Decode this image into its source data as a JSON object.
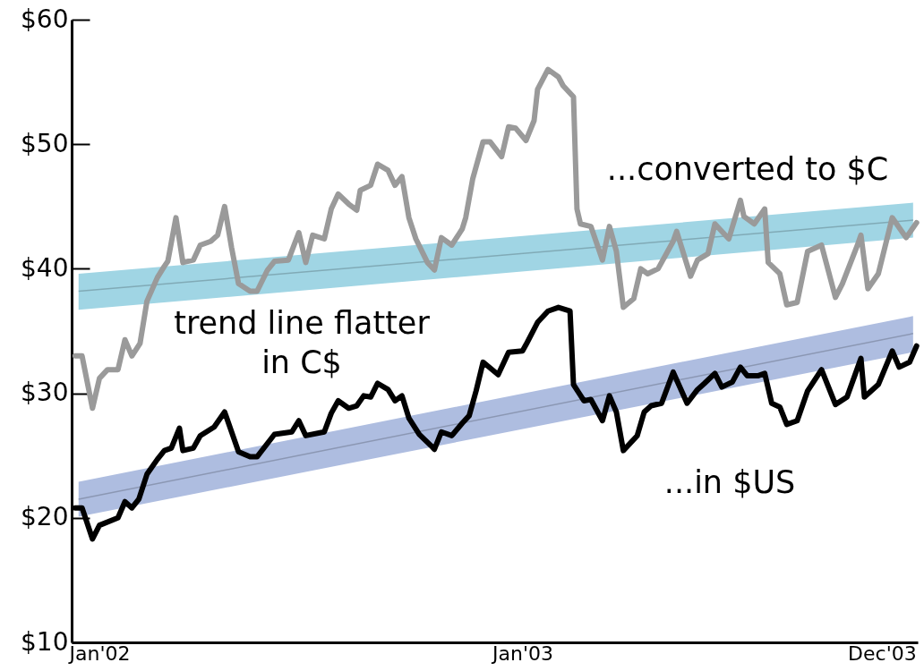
{
  "chart_data": {
    "type": "line",
    "xlim": [
      "2002-01-01",
      "2004-01-01"
    ],
    "ylim": [
      10,
      60
    ],
    "xticks": [
      {
        "value": "2002-01-25",
        "label": "Jan'02"
      },
      {
        "value": "2003-01-25",
        "label": "Jan'03"
      },
      {
        "value": "2003-12-01",
        "label": "Dec'03"
      }
    ],
    "yticks": [
      {
        "value": 10,
        "label": "$10"
      },
      {
        "value": 20,
        "label": "$20"
      },
      {
        "value": 30,
        "label": "$30"
      },
      {
        "value": 40,
        "label": "$40"
      },
      {
        "value": 50,
        "label": "$50"
      },
      {
        "value": 60,
        "label": "$60"
      }
    ],
    "annotations": [
      "trend line flatter\nin C$"
    ],
    "series": [
      {
        "color": "#80aab6",
        "x": [
          "2002-01-07",
          "2003-12-28"
        ],
        "values": [
          38.2,
          43.9
        ],
        "lower": [
          36.7,
          42.5
        ],
        "upper": [
          39.6,
          45.3
        ]
      },
      {
        "color": "#8b97b3",
        "x": [
          "2002-01-07",
          "2003-12-28"
        ],
        "values": [
          21.5,
          34.8
        ],
        "lower": [
          20.1,
          33.3
        ],
        "upper": [
          22.9,
          36.2
        ]
      },
      {
        "name": "...converted to $C",
        "color": "#9a9a9a",
        "x": [
          "2002-01-04",
          "2002-01-10",
          "2002-01-19",
          "2002-01-25",
          "2002-02-01",
          "2002-02-10",
          "2002-02-16",
          "2002-02-22",
          "2002-03-01",
          "2002-03-07",
          "2002-03-16",
          "2002-03-22",
          "2002-03-25",
          "2002-04-01",
          "2002-04-07",
          "2002-04-16",
          "2002-04-22",
          "2002-05-01",
          "2002-05-07",
          "2002-05-13",
          "2002-05-19",
          "2002-05-25",
          "2002-06-04",
          "2002-06-10",
          "2002-06-19",
          "2002-06-25",
          "2002-07-07",
          "2002-07-16",
          "2002-07-22",
          "2002-07-28",
          "2002-08-07",
          "2002-08-13",
          "2002-08-19",
          "2002-08-28",
          "2002-09-04",
          "2002-09-07",
          "2002-09-16",
          "2002-09-22",
          "2002-10-01",
          "2002-10-07",
          "2002-10-13",
          "2002-10-19",
          "2002-10-25",
          "2002-11-04",
          "2002-11-10",
          "2002-11-16",
          "2002-11-25",
          "2002-12-04",
          "2002-12-07",
          "2002-12-13",
          "2002-12-22",
          "2002-12-28",
          "2003-01-07",
          "2003-01-13",
          "2003-01-19",
          "2003-01-28",
          "2003-02-04",
          "2003-02-07",
          "2003-02-16",
          "2003-02-25",
          "2003-03-01",
          "2003-03-10",
          "2003-03-13",
          "2003-03-16",
          "2003-03-25",
          "2003-04-04",
          "2003-04-10",
          "2003-04-16",
          "2003-04-22",
          "2003-05-01",
          "2003-05-07",
          "2003-05-13",
          "2003-05-22",
          "2003-06-04",
          "2003-06-07",
          "2003-06-19",
          "2003-06-25",
          "2003-07-04",
          "2003-07-10",
          "2003-07-22",
          "2003-08-01",
          "2003-08-04",
          "2003-08-13",
          "2003-08-22",
          "2003-08-25",
          "2003-09-04",
          "2003-09-10",
          "2003-09-19",
          "2003-09-28",
          "2003-10-10",
          "2003-10-22",
          "2003-10-28",
          "2003-11-10",
          "2003-11-13",
          "2003-11-19",
          "2003-11-28",
          "2003-12-10",
          "2003-12-22",
          "2003-12-31"
        ],
        "values": [
          33.0,
          33.0,
          28.8,
          31.2,
          31.9,
          31.9,
          34.3,
          33.0,
          34.0,
          37.4,
          39.3,
          40.2,
          40.6,
          44.1,
          40.5,
          40.7,
          41.9,
          42.2,
          42.7,
          45.0,
          41.7,
          38.8,
          38.2,
          38.2,
          39.9,
          40.6,
          40.7,
          42.9,
          40.5,
          42.7,
          42.4,
          44.8,
          46.0,
          45.2,
          44.7,
          46.3,
          46.7,
          48.4,
          47.9,
          46.7,
          47.4,
          44.1,
          42.4,
          40.5,
          39.9,
          42.5,
          41.9,
          43.2,
          44.1,
          47.2,
          50.2,
          50.2,
          49.0,
          51.4,
          51.3,
          50.3,
          51.9,
          54.4,
          56.0,
          55.4,
          54.7,
          53.8,
          44.8,
          43.6,
          43.4,
          40.7,
          43.4,
          41.4,
          36.9,
          37.6,
          40.0,
          39.6,
          40.0,
          42.2,
          43.0,
          39.4,
          40.7,
          41.2,
          43.6,
          42.4,
          45.5,
          44.2,
          43.6,
          44.8,
          40.5,
          39.6,
          37.1,
          37.3,
          41.4,
          41.9,
          37.7,
          38.8,
          41.9,
          42.7,
          38.4,
          39.6,
          44.1,
          42.5,
          43.7
        ]
      },
      {
        "name": "...in $US",
        "color": "#000000",
        "x": [
          "2002-01-04",
          "2002-01-10",
          "2002-01-19",
          "2002-01-25",
          "2002-02-10",
          "2002-02-16",
          "2002-02-22",
          "2002-02-28",
          "2002-03-07",
          "2002-03-16",
          "2002-03-22",
          "2002-03-28",
          "2002-04-04",
          "2002-04-07",
          "2002-04-16",
          "2002-04-22",
          "2002-05-04",
          "2002-05-13",
          "2002-05-25",
          "2002-06-04",
          "2002-06-10",
          "2002-06-25",
          "2002-07-10",
          "2002-07-16",
          "2002-07-22",
          "2002-08-07",
          "2002-08-13",
          "2002-08-19",
          "2002-08-28",
          "2002-09-04",
          "2002-09-10",
          "2002-09-16",
          "2002-09-22",
          "2002-10-01",
          "2002-10-07",
          "2002-10-13",
          "2002-10-19",
          "2002-10-28",
          "2002-11-07",
          "2002-11-10",
          "2002-11-16",
          "2002-11-25",
          "2002-12-04",
          "2002-12-10",
          "2002-12-16",
          "2002-12-22",
          "2003-01-04",
          "2003-01-13",
          "2003-01-25",
          "2003-01-28",
          "2003-02-07",
          "2003-02-16",
          "2003-02-25",
          "2003-03-07",
          "2003-03-10",
          "2003-03-19",
          "2003-03-25",
          "2003-04-04",
          "2003-04-10",
          "2003-04-16",
          "2003-04-22",
          "2003-05-04",
          "2003-05-10",
          "2003-05-16",
          "2003-05-25",
          "2003-06-04",
          "2003-06-16",
          "2003-06-25",
          "2003-07-01",
          "2003-07-10",
          "2003-07-16",
          "2003-07-25",
          "2003-08-01",
          "2003-08-07",
          "2003-08-16",
          "2003-08-22",
          "2003-08-28",
          "2003-09-04",
          "2003-09-10",
          "2003-09-19",
          "2003-09-28",
          "2003-10-10",
          "2003-10-22",
          "2003-11-01",
          "2003-11-13",
          "2003-11-16",
          "2003-11-28",
          "2003-12-10",
          "2003-12-16",
          "2003-12-25",
          "2003-12-31"
        ],
        "values": [
          20.8,
          20.8,
          18.3,
          19.4,
          20.0,
          21.3,
          20.8,
          21.5,
          23.5,
          24.7,
          25.4,
          25.6,
          27.2,
          25.4,
          25.6,
          26.6,
          27.3,
          28.5,
          25.3,
          24.9,
          24.9,
          26.7,
          26.9,
          27.8,
          26.6,
          26.9,
          28.4,
          29.4,
          28.8,
          29.0,
          29.8,
          29.7,
          30.8,
          30.3,
          29.4,
          29.8,
          28.0,
          26.7,
          25.8,
          25.5,
          26.9,
          26.6,
          27.6,
          28.2,
          30.2,
          32.5,
          31.5,
          33.3,
          33.4,
          33.9,
          35.7,
          36.6,
          36.9,
          36.6,
          30.7,
          29.4,
          29.5,
          27.8,
          29.8,
          28.5,
          25.4,
          26.6,
          28.5,
          29.0,
          29.2,
          31.7,
          29.2,
          30.3,
          30.8,
          31.6,
          30.5,
          30.9,
          32.1,
          31.4,
          31.4,
          31.6,
          29.2,
          28.9,
          27.5,
          27.8,
          30.2,
          31.9,
          29.1,
          29.7,
          32.8,
          29.7,
          30.7,
          33.4,
          32.1,
          32.5,
          33.8
        ]
      }
    ]
  }
}
